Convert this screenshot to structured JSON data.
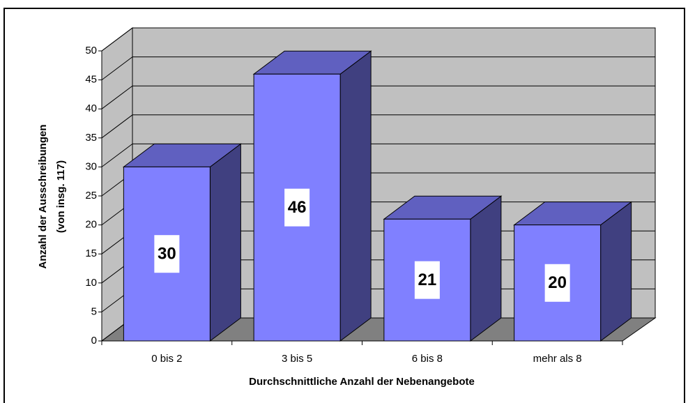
{
  "chart_data": {
    "type": "bar3d",
    "ylabel": [
      "Anzahl der Ausschreibungen",
      "(von insg. 117)"
    ],
    "xlabel": "Durchschnittliche Anzahl der Nebenangebote",
    "categories": [
      "0 bis 2",
      "3 bis 5",
      "6 bis 8",
      "mehr als 8"
    ],
    "values": [
      30,
      46,
      21,
      20
    ],
    "color": "#8080ff",
    "ylim": [
      0,
      50
    ],
    "yticks": [
      0,
      5,
      10,
      15,
      20,
      25,
      30,
      35,
      40,
      45,
      50
    ],
    "grid": true
  }
}
